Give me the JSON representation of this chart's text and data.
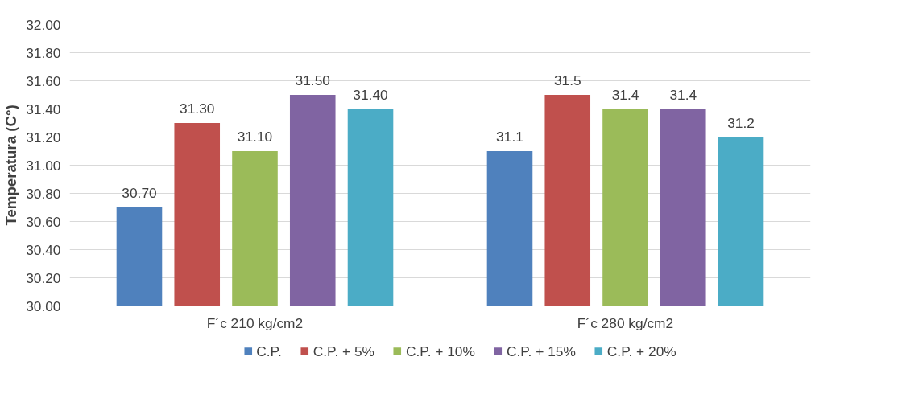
{
  "chart_data": {
    "type": "bar",
    "ylabel": "Temperatura (C°)",
    "categories": [
      "F´c 210 kg/cm2",
      "F´c 280 kg/cm2"
    ],
    "series": [
      {
        "name": "C.P.",
        "color": "#4f81bd",
        "values": [
          30.7,
          31.1
        ],
        "value_labels": [
          "30.70",
          "31.1"
        ]
      },
      {
        "name": "C.P. + 5%",
        "color": "#c0504d",
        "values": [
          31.3,
          31.5
        ],
        "value_labels": [
          "31.30",
          "31.5"
        ]
      },
      {
        "name": "C.P. + 10%",
        "color": "#9bbb59",
        "values": [
          31.1,
          31.4
        ],
        "value_labels": [
          "31.10",
          "31.4"
        ]
      },
      {
        "name": "C.P. + 15%",
        "color": "#8064a2",
        "values": [
          31.5,
          31.4
        ],
        "value_labels": [
          "31.50",
          "31.4"
        ]
      },
      {
        "name": "C.P. + 20%",
        "color": "#4bacc6",
        "values": [
          31.4,
          31.2
        ],
        "value_labels": [
          "31.40",
          "31.2"
        ]
      }
    ],
    "ylim": [
      30,
      32
    ],
    "yticks": [
      {
        "value": 30,
        "label": "30.00"
      },
      {
        "value": 30.2,
        "label": "30.20"
      },
      {
        "value": 30.4,
        "label": "30.40"
      },
      {
        "value": 30.6,
        "label": "30.60"
      },
      {
        "value": 30.8,
        "label": "30.80"
      },
      {
        "value": 31,
        "label": "31.00"
      },
      {
        "value": 31.2,
        "label": "31.20"
      },
      {
        "value": 31.4,
        "label": "31.40"
      },
      {
        "value": 31.6,
        "label": "31.60"
      },
      {
        "value": 31.8,
        "label": "31.80"
      },
      {
        "value": 32,
        "label": "32.00"
      }
    ],
    "grid": "y",
    "legend": "bottom"
  }
}
